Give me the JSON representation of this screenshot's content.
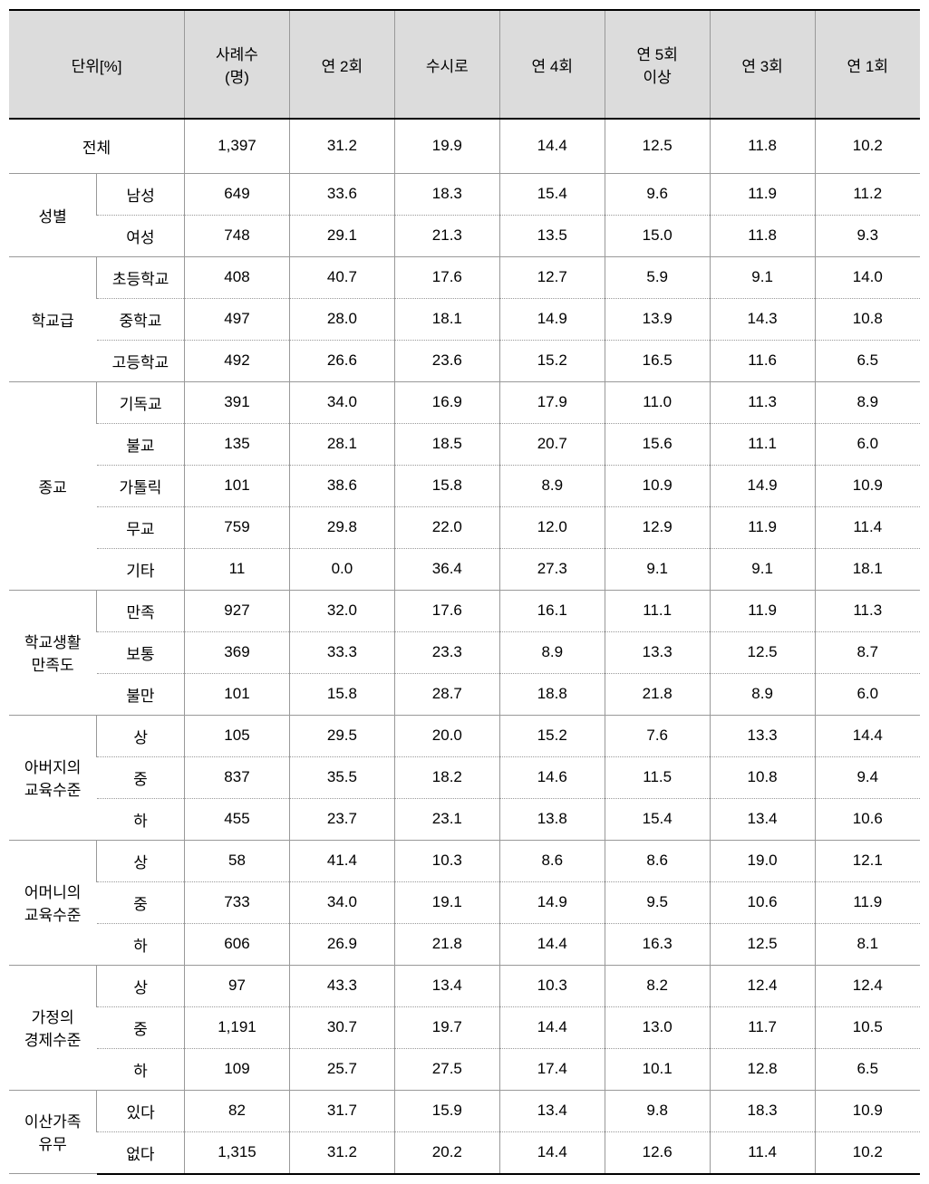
{
  "table": {
    "headers": {
      "unit": "단위[%]",
      "cols": [
        "사례수\n(명)",
        "연 2회",
        "수시로",
        "연 4회",
        "연 5회\n이상",
        "연 3회",
        "연 1회"
      ]
    },
    "total": {
      "label": "전체",
      "values": [
        "1,397",
        "31.2",
        "19.9",
        "14.4",
        "12.5",
        "11.8",
        "10.2"
      ]
    },
    "groups": [
      {
        "label": "성별",
        "rows": [
          {
            "sub": "남성",
            "vals": [
              "649",
              "33.6",
              "18.3",
              "15.4",
              "9.6",
              "11.9",
              "11.2"
            ]
          },
          {
            "sub": "여성",
            "vals": [
              "748",
              "29.1",
              "21.3",
              "13.5",
              "15.0",
              "11.8",
              "9.3"
            ]
          }
        ]
      },
      {
        "label": "학교급",
        "rows": [
          {
            "sub": "초등학교",
            "vals": [
              "408",
              "40.7",
              "17.6",
              "12.7",
              "5.9",
              "9.1",
              "14.0"
            ]
          },
          {
            "sub": "중학교",
            "vals": [
              "497",
              "28.0",
              "18.1",
              "14.9",
              "13.9",
              "14.3",
              "10.8"
            ]
          },
          {
            "sub": "고등학교",
            "vals": [
              "492",
              "26.6",
              "23.6",
              "15.2",
              "16.5",
              "11.6",
              "6.5"
            ]
          }
        ]
      },
      {
        "label": "종교",
        "rows": [
          {
            "sub": "기독교",
            "vals": [
              "391",
              "34.0",
              "16.9",
              "17.9",
              "11.0",
              "11.3",
              "8.9"
            ]
          },
          {
            "sub": "불교",
            "vals": [
              "135",
              "28.1",
              "18.5",
              "20.7",
              "15.6",
              "11.1",
              "6.0"
            ]
          },
          {
            "sub": "가톨릭",
            "vals": [
              "101",
              "38.6",
              "15.8",
              "8.9",
              "10.9",
              "14.9",
              "10.9"
            ]
          },
          {
            "sub": "무교",
            "vals": [
              "759",
              "29.8",
              "22.0",
              "12.0",
              "12.9",
              "11.9",
              "11.4"
            ]
          },
          {
            "sub": "기타",
            "vals": [
              "11",
              "0.0",
              "36.4",
              "27.3",
              "9.1",
              "9.1",
              "18.1"
            ]
          }
        ]
      },
      {
        "label": "학교생활\n만족도",
        "rows": [
          {
            "sub": "만족",
            "vals": [
              "927",
              "32.0",
              "17.6",
              "16.1",
              "11.1",
              "11.9",
              "11.3"
            ]
          },
          {
            "sub": "보통",
            "vals": [
              "369",
              "33.3",
              "23.3",
              "8.9",
              "13.3",
              "12.5",
              "8.7"
            ]
          },
          {
            "sub": "불만",
            "vals": [
              "101",
              "15.8",
              "28.7",
              "18.8",
              "21.8",
              "8.9",
              "6.0"
            ]
          }
        ]
      },
      {
        "label": "아버지의\n교육수준",
        "rows": [
          {
            "sub": "상",
            "vals": [
              "105",
              "29.5",
              "20.0",
              "15.2",
              "7.6",
              "13.3",
              "14.4"
            ]
          },
          {
            "sub": "중",
            "vals": [
              "837",
              "35.5",
              "18.2",
              "14.6",
              "11.5",
              "10.8",
              "9.4"
            ]
          },
          {
            "sub": "하",
            "vals": [
              "455",
              "23.7",
              "23.1",
              "13.8",
              "15.4",
              "13.4",
              "10.6"
            ]
          }
        ]
      },
      {
        "label": "어머니의\n교육수준",
        "rows": [
          {
            "sub": "상",
            "vals": [
              "58",
              "41.4",
              "10.3",
              "8.6",
              "8.6",
              "19.0",
              "12.1"
            ]
          },
          {
            "sub": "중",
            "vals": [
              "733",
              "34.0",
              "19.1",
              "14.9",
              "9.5",
              "10.6",
              "11.9"
            ]
          },
          {
            "sub": "하",
            "vals": [
              "606",
              "26.9",
              "21.8",
              "14.4",
              "16.3",
              "12.5",
              "8.1"
            ]
          }
        ]
      },
      {
        "label": "가정의\n경제수준",
        "rows": [
          {
            "sub": "상",
            "vals": [
              "97",
              "43.3",
              "13.4",
              "10.3",
              "8.2",
              "12.4",
              "12.4"
            ]
          },
          {
            "sub": "중",
            "vals": [
              "1,191",
              "30.7",
              "19.7",
              "14.4",
              "13.0",
              "11.7",
              "10.5"
            ]
          },
          {
            "sub": "하",
            "vals": [
              "109",
              "25.7",
              "27.5",
              "17.4",
              "10.1",
              "12.8",
              "6.5"
            ]
          }
        ]
      },
      {
        "label": "이산가족\n유무",
        "rows": [
          {
            "sub": "있다",
            "vals": [
              "82",
              "31.7",
              "15.9",
              "13.4",
              "9.8",
              "18.3",
              "10.9"
            ]
          },
          {
            "sub": "없다",
            "vals": [
              "1,315",
              "31.2",
              "20.2",
              "14.4",
              "12.6",
              "11.4",
              "10.2"
            ]
          }
        ]
      }
    ]
  },
  "styles": {
    "header_bg": "#dcdcdc",
    "border_solid": "#999999",
    "border_thick": "#000000",
    "font_size": 17
  }
}
